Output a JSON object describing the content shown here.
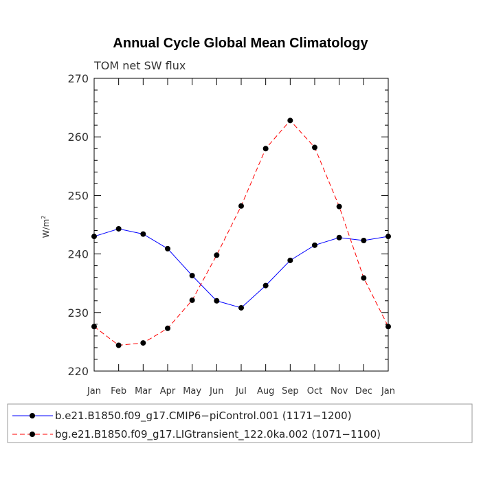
{
  "chart_data": {
    "type": "line",
    "title": "Annual Cycle Global Mean Climatology",
    "subtitle": "TOM net SW flux",
    "ylabel": "W/m",
    "ylabel_superscript": "2",
    "ylim": [
      220,
      270
    ],
    "yticks": [
      220,
      230,
      240,
      250,
      260,
      270
    ],
    "categories": [
      "Jan",
      "Feb",
      "Mar",
      "Apr",
      "May",
      "Jun",
      "Jul",
      "Aug",
      "Sep",
      "Oct",
      "Nov",
      "Dec",
      "Jan"
    ],
    "series": [
      {
        "name": "b.e21.B1850.f09_g17.CMIP6−piControl.001 (1171−1200)",
        "color": "#0000ff",
        "dash": "solid",
        "values": [
          243.0,
          244.3,
          243.4,
          240.9,
          236.3,
          232.0,
          230.8,
          234.6,
          238.9,
          241.5,
          242.8,
          242.3,
          243.0
        ]
      },
      {
        "name": "bg.e21.B1850.f09_g17.LIGtransient_122.0ka.002 (1071−1100)",
        "color": "#ff0000",
        "dash": "dashed",
        "values": [
          227.6,
          224.4,
          224.8,
          227.3,
          232.1,
          239.8,
          248.2,
          258.0,
          262.8,
          258.2,
          248.1,
          235.9,
          227.6
        ]
      }
    ]
  }
}
